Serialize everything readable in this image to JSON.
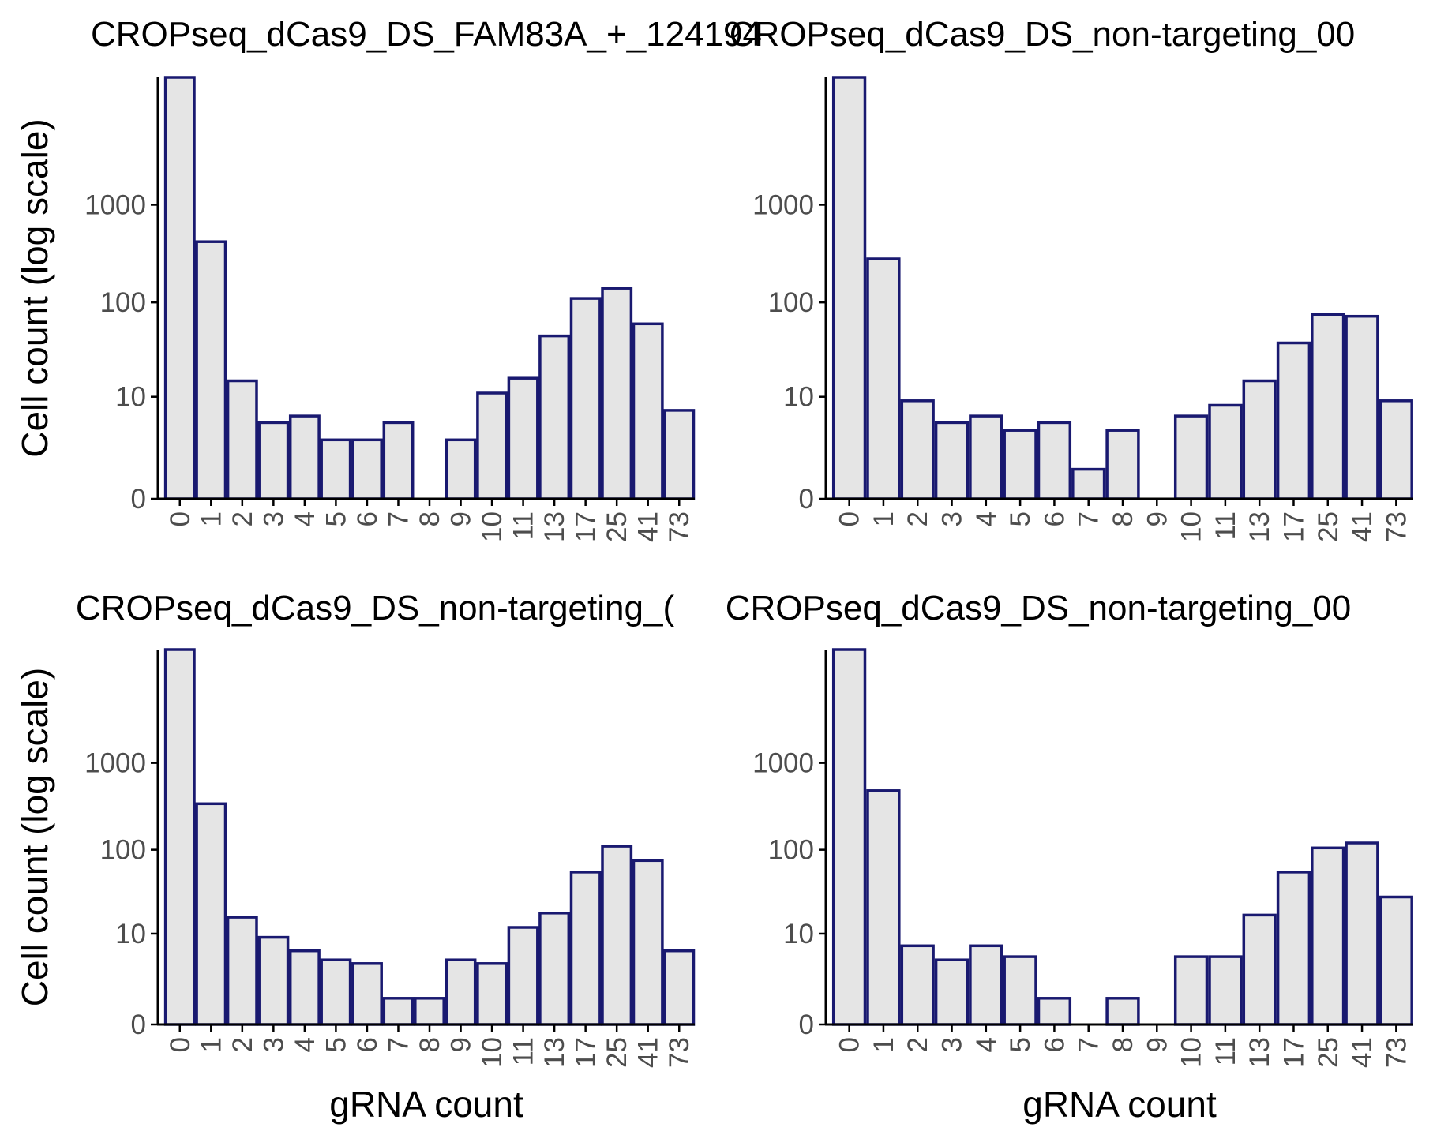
{
  "figure": {
    "colors": {
      "bar_fill": "#e5e5e5",
      "bar_stroke": "#191970",
      "axis": "#000000",
      "tick_label": "#4d4d4d"
    }
  },
  "chart_data": [
    {
      "type": "bar",
      "title": "CROPseq_dCas9_DS_FAM83A_+_124194",
      "xlabel": "",
      "ylabel": "Cell count (log scale)",
      "y_scale": "log10(1 + count)",
      "yticks": [
        0,
        10,
        100,
        1000
      ],
      "categories": [
        "0",
        "1",
        "2",
        "3",
        "4",
        "5",
        "6",
        "7",
        "8",
        "9",
        "10",
        "11",
        "13",
        "17",
        "25",
        "41",
        "73"
      ],
      "values": [
        20000,
        420,
        15,
        5,
        6,
        3,
        3,
        5,
        0,
        3,
        11,
        16,
        45,
        110,
        140,
        60,
        7
      ]
    },
    {
      "type": "bar",
      "title": "CROPseq_dCas9_DS_non-targeting_00",
      "xlabel": "",
      "ylabel": "",
      "y_scale": "log10(1 + count)",
      "yticks": [
        0,
        10,
        100,
        1000
      ],
      "categories": [
        "0",
        "1",
        "2",
        "3",
        "4",
        "5",
        "6",
        "7",
        "8",
        "9",
        "10",
        "11",
        "13",
        "17",
        "25",
        "41",
        "73"
      ],
      "values": [
        20000,
        280,
        9,
        5,
        6,
        4,
        5,
        1,
        4,
        0,
        6,
        8,
        15,
        38,
        75,
        72,
        9
      ]
    },
    {
      "type": "bar",
      "title": "CROPseq_dCas9_DS_non-targeting_(",
      "xlabel": "gRNA count",
      "ylabel": "Cell count (log scale)",
      "y_scale": "log10(1 + count)",
      "yticks": [
        0,
        10,
        100,
        1000
      ],
      "categories": [
        "0",
        "1",
        "2",
        "3",
        "4",
        "5",
        "6",
        "7",
        "8",
        "9",
        "10",
        "11",
        "13",
        "17",
        "25",
        "41",
        "73"
      ],
      "values": [
        20000,
        340,
        16,
        9,
        6,
        4.5,
        4,
        1,
        1,
        4.5,
        4,
        12,
        18,
        55,
        110,
        75,
        6
      ]
    },
    {
      "type": "bar",
      "title": "CROPseq_dCas9_DS_non-targeting_00",
      "xlabel": "gRNA count",
      "ylabel": "",
      "y_scale": "log10(1 + count)",
      "yticks": [
        0,
        10,
        100,
        1000
      ],
      "categories": [
        "0",
        "1",
        "2",
        "3",
        "4",
        "5",
        "6",
        "7",
        "8",
        "9",
        "10",
        "11",
        "13",
        "17",
        "25",
        "41",
        "73"
      ],
      "values": [
        20000,
        480,
        7,
        4.5,
        7,
        5,
        1,
        0,
        1,
        0,
        5,
        5,
        17,
        55,
        105,
        120,
        28
      ]
    }
  ]
}
